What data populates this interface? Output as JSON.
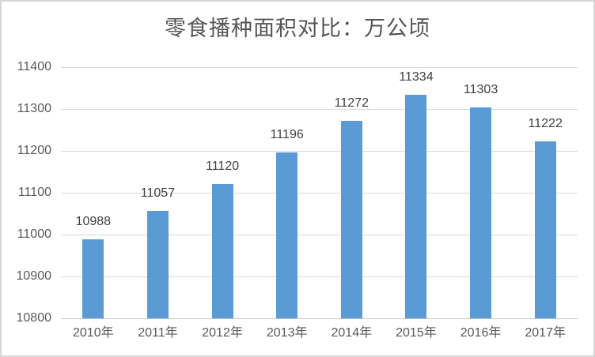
{
  "page": {
    "background": "#ffffff",
    "border_color": "#d6d6d6"
  },
  "chart_data": {
    "type": "bar",
    "title": "零食播种面积对比：万公顷",
    "categories": [
      "2010年",
      "2011年",
      "2012年",
      "2013年",
      "2014年",
      "2015年",
      "2016年",
      "2017年"
    ],
    "values": [
      10988,
      11057,
      11120,
      11196,
      11272,
      11334,
      11303,
      11222
    ],
    "data_labels_shown": true,
    "xlabel": "",
    "ylabel": "",
    "ylim": [
      10800,
      11400
    ],
    "ytick_step": 100,
    "yticks": [
      10800,
      10900,
      11000,
      11100,
      11200,
      11300,
      11400
    ],
    "grid": true,
    "legend": "none",
    "bar_color": "#5b9bd5",
    "gridline_color": "#d9d9d9",
    "axis_line_color": "#c6c6c6",
    "tick_label_color": "#595959",
    "data_label_color": "#404040",
    "title_color": "#555555"
  }
}
